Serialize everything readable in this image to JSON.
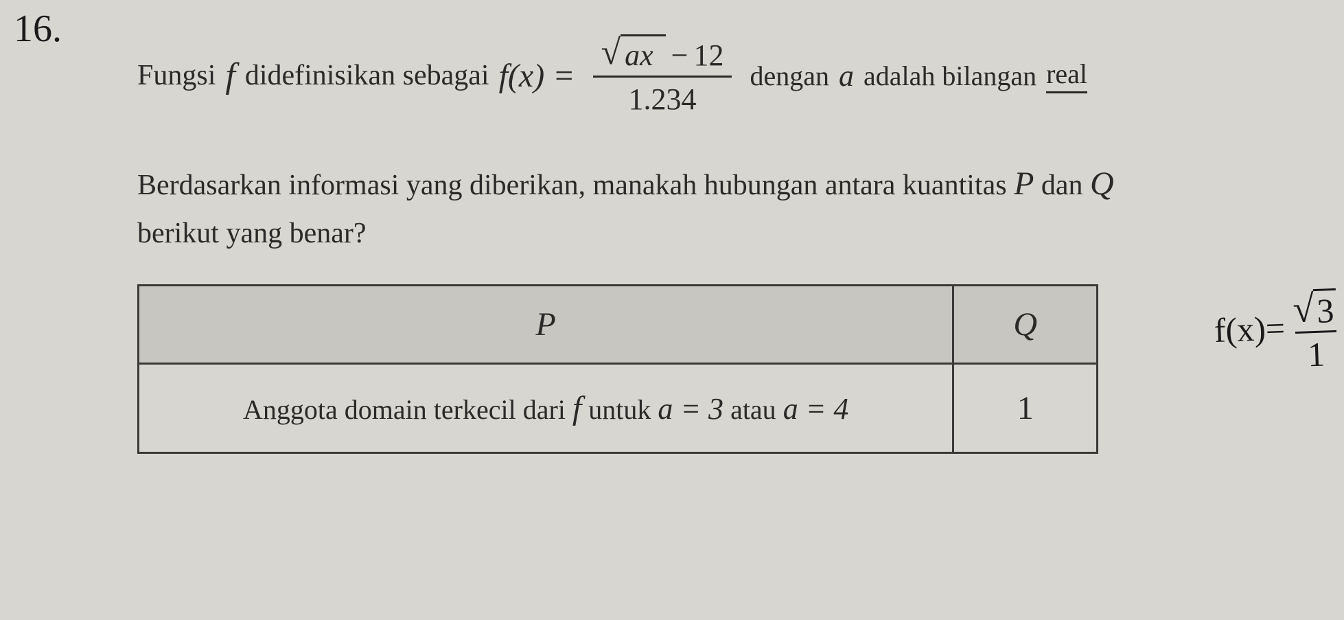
{
  "question_number": "16.",
  "line1": {
    "text_before": "Fungsi",
    "func_symbol": "f",
    "text_mid": "didefinisikan sebagai",
    "fx": "f(x) =",
    "sqrt_inner": "ax",
    "minus": "−",
    "const": "12",
    "denominator": "1.234",
    "text_after1": "dengan",
    "a_var": "a",
    "text_after2": "adalah bilangan",
    "real": "real"
  },
  "paragraph2": {
    "line_a": "Berdasarkan informasi yang diberikan, manakah hubungan antara kuantitas",
    "P": "P",
    "dan": "dan",
    "Q": "Q",
    "line_b": "berikut yang benar?"
  },
  "table": {
    "header_p": "P",
    "header_q": "Q",
    "cell_p_text1": "Anggota domain terkecil dari",
    "cell_p_f": "f",
    "cell_p_text2": "untuk",
    "cell_p_eq1": "a = 3",
    "cell_p_or": "atau",
    "cell_p_eq2": "a = 4",
    "cell_q": "1"
  },
  "handwriting": {
    "fx": "f(x)=",
    "sqrt_content": "3",
    "denom": "1"
  },
  "colors": {
    "background": "#d8d6d0",
    "text": "#2a2a28",
    "table_header_bg": "#c8c6c0",
    "border": "#3a3a38"
  }
}
